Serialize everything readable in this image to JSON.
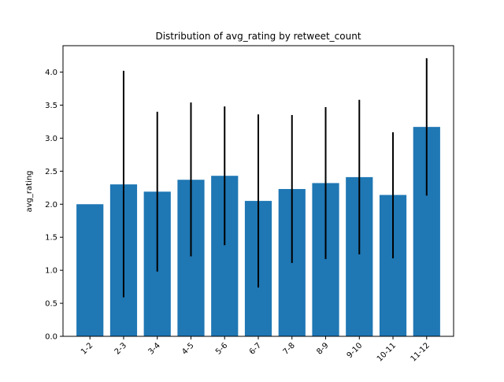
{
  "chart_data": {
    "type": "bar",
    "title": "Distribution of avg_rating by retweet_count",
    "xlabel": "",
    "ylabel": "avg_rating",
    "categories": [
      "1-2",
      "2-3",
      "3-4",
      "4-5",
      "5-6",
      "6-7",
      "7-8",
      "8-9",
      "9-10",
      "10-11",
      "11-12"
    ],
    "values": [
      2.0,
      2.3,
      2.19,
      2.37,
      2.43,
      2.05,
      2.23,
      2.32,
      2.41,
      2.14,
      3.17
    ],
    "error_low": [
      null,
      0.59,
      0.98,
      1.21,
      1.38,
      0.74,
      1.11,
      1.17,
      1.24,
      1.18,
      2.13
    ],
    "error_high": [
      null,
      4.02,
      3.4,
      3.54,
      3.48,
      3.36,
      3.35,
      3.47,
      3.58,
      3.09,
      4.21
    ],
    "ylim": [
      0,
      4.4
    ],
    "yticks": [
      0.0,
      0.5,
      1.0,
      1.5,
      2.0,
      2.5,
      3.0,
      3.5,
      4.0
    ],
    "ytick_labels": [
      "0.0",
      "0.5",
      "1.0",
      "1.5",
      "2.0",
      "2.5",
      "3.0",
      "3.5",
      "4.0"
    ],
    "grid": false,
    "bar_color": "#1f77b4",
    "error_color": "#000000"
  }
}
